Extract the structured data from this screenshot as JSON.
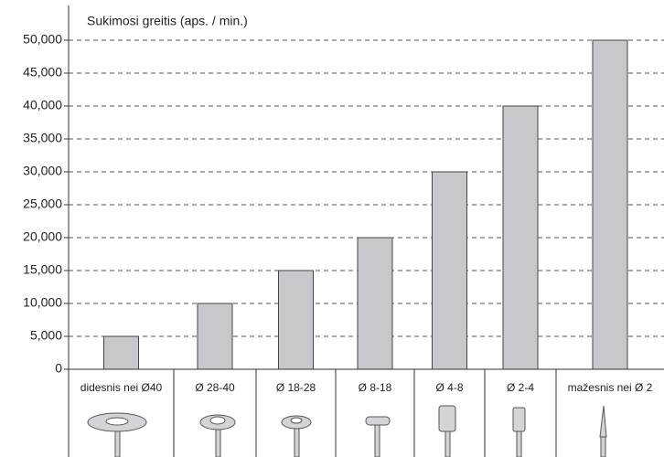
{
  "chart_data": {
    "type": "bar",
    "title": "Sukimosi greitis (aps. / min.)",
    "categories": [
      "didesnis nei Ø40",
      "Ø 28-40",
      "Ø 18-28",
      "Ø 8-18",
      "Ø 4-8",
      "Ø 2-4",
      "mažesnis nei Ø 2"
    ],
    "values": [
      5000,
      10000,
      15000,
      20000,
      30000,
      40000,
      50000
    ],
    "color": "#c8c8cc",
    "ylim": [
      0,
      50000
    ],
    "yticks": [
      0,
      {
        "value": 5000,
        "label": "5,000"
      },
      {
        "value": 10000,
        "label": "10,000"
      },
      {
        "value": 15000,
        "label": "15,000"
      },
      {
        "value": 20000,
        "label": "20,000"
      },
      {
        "value": 25000,
        "label": "25,000"
      },
      {
        "value": 30000,
        "label": "30,000"
      },
      {
        "value": 35000,
        "label": "35,000"
      },
      {
        "value": 40000,
        "label": "40,000"
      },
      {
        "value": 45000,
        "label": "45,000"
      },
      {
        "value": 50000,
        "label": "50,000"
      }
    ],
    "grid": true
  }
}
